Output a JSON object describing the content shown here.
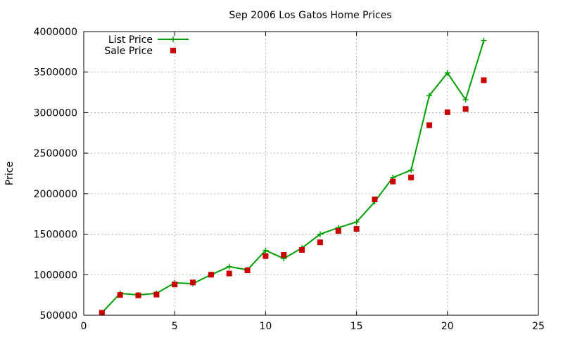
{
  "chart_data": {
    "type": "line",
    "title": "Sep 2006 Los Gatos Home Prices",
    "xlabel": "",
    "ylabel": "Price",
    "xlim": [
      0,
      25
    ],
    "ylim": [
      500000,
      4000000
    ],
    "xticks": [
      0,
      5,
      10,
      15,
      20,
      25
    ],
    "yticks": [
      500000,
      1000000,
      1500000,
      2000000,
      2500000,
      3000000,
      3500000,
      4000000
    ],
    "x_tick_labels": [
      "0",
      "5",
      "10",
      "15",
      "20",
      "25"
    ],
    "y_tick_labels": [
      "500000",
      "1000000",
      "1500000",
      "2000000",
      "2500000",
      "3000000",
      "3500000",
      "4000000"
    ],
    "grid": true,
    "legend_position": "top-left",
    "x": [
      1,
      2,
      3,
      4,
      5,
      6,
      7,
      8,
      9,
      10,
      11,
      12,
      13,
      14,
      15,
      16,
      17,
      18,
      19,
      20,
      21,
      22
    ],
    "series": [
      {
        "name": "List Price",
        "style": "linespoints",
        "marker": "plus",
        "color": "#00a000",
        "values": [
          530000,
          770000,
          750000,
          770000,
          900000,
          890000,
          1000000,
          1100000,
          1060000,
          1300000,
          1200000,
          1330000,
          1500000,
          1580000,
          1650000,
          1900000,
          2200000,
          2290000,
          3210000,
          3490000,
          3160000,
          3890000
        ]
      },
      {
        "name": "Sale Price",
        "style": "points",
        "marker": "square",
        "color": "#cc0000",
        "values": [
          530000,
          750000,
          745000,
          755000,
          880000,
          905000,
          1000000,
          1015000,
          1055000,
          1230000,
          1245000,
          1305000,
          1400000,
          1540000,
          1565000,
          1930000,
          2150000,
          2200000,
          2845000,
          3005000,
          3045000,
          3400000
        ]
      }
    ]
  }
}
